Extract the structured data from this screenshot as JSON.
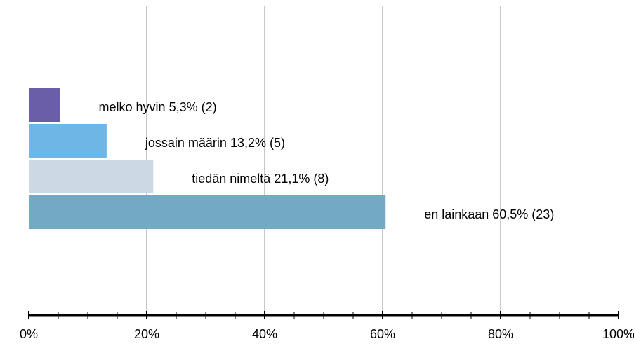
{
  "chart_data": {
    "type": "hbar",
    "categories": [
      "melko hyvin",
      "jossain määrin",
      "tiedän nimeltä",
      "en lainkaan"
    ],
    "values": [
      5.3,
      13.2,
      21.1,
      60.5
    ],
    "value_labels": [
      "5,3% (2)",
      "13,2% (5)",
      "21,1% (8)",
      "60,5% (23)"
    ],
    "colors": [
      "#6a5ea8",
      "#6cb7e6",
      "#ccd8e4",
      "#74a9c4"
    ],
    "xlim": [
      0,
      100
    ],
    "xticks": [
      {
        "value": 0,
        "label": "0%"
      },
      {
        "value": 20,
        "label": "20%"
      },
      {
        "value": 40,
        "label": "40%"
      },
      {
        "value": 60,
        "label": "60%"
      },
      {
        "value": 80,
        "label": "80%"
      },
      {
        "value": 100,
        "label": "100%"
      }
    ],
    "xminor_ticks": [
      5,
      10,
      15,
      25,
      30,
      35,
      45,
      50,
      55,
      65,
      70,
      75,
      85,
      90,
      95
    ],
    "grid": true
  }
}
